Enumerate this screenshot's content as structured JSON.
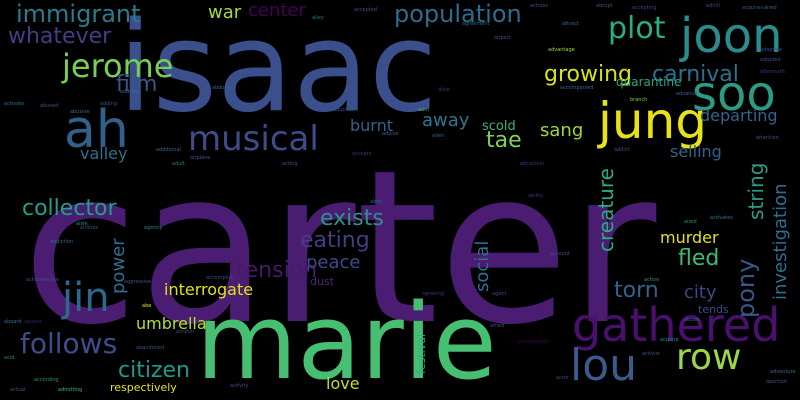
{
  "words": [
    {
      "text": "carter",
      "color": "#4a1d72",
      "rot": false
    },
    {
      "text": "isaac",
      "color": "#3a4f8b",
      "rot": false
    },
    {
      "text": "marie",
      "color": "#46bf72",
      "rot": false
    },
    {
      "text": "joon",
      "color": "#2a8c8c",
      "rot": false
    },
    {
      "text": "soo",
      "color": "#2c9a84",
      "rot": false
    },
    {
      "text": "jung",
      "color": "#e6e216",
      "rot": false
    },
    {
      "text": "ah",
      "color": "#31608d",
      "rot": false
    },
    {
      "text": "gathered",
      "color": "#4b0f6f",
      "rot": false
    },
    {
      "text": "lou",
      "color": "#3a5b8c",
      "rot": false
    },
    {
      "text": "row",
      "color": "#9cd64a",
      "rot": false
    },
    {
      "text": "jin",
      "color": "#2b6a8d",
      "rot": false
    },
    {
      "text": "jerome",
      "color": "#75d054",
      "rot": false
    },
    {
      "text": "musical",
      "color": "#404b8b",
      "rot": false
    },
    {
      "text": "plot",
      "color": "#28ae80",
      "rot": false
    },
    {
      "text": "population",
      "color": "#2f6b8e",
      "rot": false
    },
    {
      "text": "immigrant",
      "color": "#2c7a8e",
      "rot": false
    },
    {
      "text": "whatever",
      "color": "#433e85",
      "rot": false
    },
    {
      "text": "follows",
      "color": "#3d4d8a",
      "rot": false
    },
    {
      "text": "eating",
      "color": "#433d84",
      "rot": false
    },
    {
      "text": "exists",
      "color": "#30918b",
      "rot": false
    },
    {
      "text": "tension",
      "color": "#48186a",
      "rot": false
    },
    {
      "text": "collector",
      "color": "#1fa088",
      "rot": false
    },
    {
      "text": "citizen",
      "color": "#1f9a8a",
      "rot": false
    },
    {
      "text": "growing",
      "color": "#d8e219",
      "rot": false
    },
    {
      "text": "carnival",
      "color": "#2c718e",
      "rot": false
    },
    {
      "text": "film",
      "color": "#39558c",
      "rot": false
    },
    {
      "text": "war",
      "color": "#a2da37",
      "rot": false
    },
    {
      "text": "center",
      "color": "#440154",
      "rot": false
    },
    {
      "text": "tae",
      "color": "#7fd34e",
      "rot": false
    },
    {
      "text": "sang",
      "color": "#9bd93c",
      "rot": false
    },
    {
      "text": "away",
      "color": "#2a778e",
      "rot": false
    },
    {
      "text": "burnt",
      "color": "#33628d",
      "rot": false
    },
    {
      "text": "scold",
      "color": "#39b57a",
      "rot": false
    },
    {
      "text": "departing",
      "color": "#32648e",
      "rot": false
    },
    {
      "text": "investigation",
      "color": "#2e6f8e",
      "rot": false
    },
    {
      "text": "string",
      "color": "#2d9c89",
      "rot": false
    },
    {
      "text": "selling",
      "color": "#34618d",
      "rot": false
    },
    {
      "text": "quarantine",
      "color": "#22a785",
      "rot": false
    },
    {
      "text": "creature",
      "color": "#28ae80",
      "rot": false
    },
    {
      "text": "murder",
      "color": "#dde318",
      "rot": false
    },
    {
      "text": "fled",
      "color": "#3bbb75",
      "rot": false
    },
    {
      "text": "pony",
      "color": "#39558c",
      "rot": false
    },
    {
      "text": "torn",
      "color": "#33628d",
      "rot": false
    },
    {
      "text": "city",
      "color": "#404688",
      "rot": false
    },
    {
      "text": "social",
      "color": "#2e6e8e",
      "rot": false
    },
    {
      "text": "peace",
      "color": "#3f4889",
      "rot": false
    },
    {
      "text": "power",
      "color": "#2e6e8e",
      "rot": false
    },
    {
      "text": "interrogate",
      "color": "#dde318",
      "rot": false
    },
    {
      "text": "umbrella",
      "color": "#b5de2b",
      "rot": false
    },
    {
      "text": "valley",
      "color": "#2c718e",
      "rot": false
    },
    {
      "text": "love",
      "color": "#c2df23",
      "rot": false
    },
    {
      "text": "respectively",
      "color": "#e6e419",
      "rot": false
    },
    {
      "text": "festival",
      "color": "#2db27d",
      "rot": false
    },
    {
      "text": "tends",
      "color": "#3e4a89",
      "rot": false
    },
    {
      "text": "dust",
      "color": "#482878",
      "rot": false
    },
    {
      "text": "acquires",
      "color": "#3b528b",
      "rot": false
    },
    {
      "text": "accomplish",
      "color": "#3e4989",
      "rot": false
    },
    {
      "text": "activity",
      "color": "#3b528b",
      "rot": false
    },
    {
      "text": "according",
      "color": "#21918c",
      "rot": false
    },
    {
      "text": "actual",
      "color": "#3a548c",
      "rot": false
    },
    {
      "text": "admitting",
      "color": "#35b779",
      "rot": false
    },
    {
      "text": "alley",
      "color": "#2c728e",
      "rot": false
    },
    {
      "text": "airport",
      "color": "#3b528b",
      "rot": false
    },
    {
      "text": "advantage",
      "color": "#a5db36",
      "rot": false
    },
    {
      "text": "addiction",
      "color": "#31688e",
      "rot": false
    },
    {
      "text": "accepts",
      "color": "#46307e",
      "rot": false
    },
    {
      "text": "actor",
      "color": "#3e4989",
      "rot": false
    },
    {
      "text": "abortion",
      "color": "#3b528b",
      "rot": false
    },
    {
      "text": "adventure",
      "color": "#31688e",
      "rot": false
    },
    {
      "text": "activist",
      "color": "#3b528b",
      "rot": false
    },
    {
      "text": "branch",
      "color": "#7ad151",
      "rot": false
    },
    {
      "text": "acid",
      "color": "#25858e",
      "rot": false
    },
    {
      "text": "agent",
      "color": "#433e85",
      "rot": false
    },
    {
      "text": "agency",
      "color": "#26828e",
      "rot": false
    },
    {
      "text": "adult",
      "color": "#2a788e",
      "rot": false
    },
    {
      "text": "airplane",
      "color": "#3b528b",
      "rot": false
    },
    {
      "text": "abusive",
      "color": "#2c728e",
      "rot": false
    },
    {
      "text": "attraction",
      "color": "#46327e",
      "rot": false
    },
    {
      "text": "abe",
      "color": "#e5e419",
      "rot": false
    },
    {
      "text": "accidentally",
      "color": "#440154",
      "rot": false
    },
    {
      "text": "account",
      "color": "#3b528b",
      "rot": false
    },
    {
      "text": "abby",
      "color": "#31688e",
      "rot": false
    },
    {
      "text": "aboard",
      "color": "#48186a",
      "rot": false
    },
    {
      "text": "accepted",
      "color": "#3b528b",
      "rot": false
    },
    {
      "text": "afraid",
      "color": "#3b528b",
      "rot": false
    },
    {
      "text": "agreeing",
      "color": "#472d7b",
      "rot": false
    },
    {
      "text": "alive",
      "color": "#46307e",
      "rot": false
    },
    {
      "text": "aired",
      "color": "#21918c",
      "rot": false
    },
    {
      "text": "adopted",
      "color": "#3b528b",
      "rot": false
    },
    {
      "text": "attract",
      "color": "#2c728e",
      "rot": false
    },
    {
      "text": "admit",
      "color": "#414487",
      "rot": false
    },
    {
      "text": "additional",
      "color": "#31688e",
      "rot": false
    },
    {
      "text": "activates",
      "color": "#2a788e",
      "rot": false
    },
    {
      "text": "aggressive",
      "color": "#3b528b",
      "rot": false
    },
    {
      "text": "aftermath",
      "color": "#46327e",
      "rot": false
    },
    {
      "text": "alcohol",
      "color": "#3b528b",
      "rot": false
    },
    {
      "text": "abducted",
      "color": "#3b528b",
      "rot": false
    },
    {
      "text": "active",
      "color": "#21918c",
      "rot": false
    },
    {
      "text": "adoptive",
      "color": "#3b528b",
      "rot": false
    },
    {
      "text": "aunt",
      "color": "#35b779",
      "rot": false
    },
    {
      "text": "abused",
      "color": "#3b528b",
      "rot": false
    },
    {
      "text": "adding",
      "color": "#3b528b",
      "rot": false
    },
    {
      "text": "acting",
      "color": "#3b528b",
      "rot": false
    },
    {
      "text": "advice",
      "color": "#31688e",
      "rot": false
    },
    {
      "text": "addict",
      "color": "#3b528b",
      "rot": false
    },
    {
      "text": "abducts",
      "color": "#31688e",
      "rot": false
    },
    {
      "text": "acknowledge",
      "color": "#3b528b",
      "rot": false
    },
    {
      "text": "accompanied",
      "color": "#31688e",
      "rot": false
    },
    {
      "text": "attention",
      "color": "#3b528b",
      "rot": false
    },
    {
      "text": "airlines",
      "color": "#3b528b",
      "rot": false
    },
    {
      "text": "activate",
      "color": "#2c728e",
      "rot": false
    },
    {
      "text": "advance",
      "color": "#31688e",
      "rot": false
    },
    {
      "text": "aisle",
      "color": "#21918c",
      "rot": false
    },
    {
      "text": "ability",
      "color": "#46307e",
      "rot": false
    },
    {
      "text": "abandoned",
      "color": "#3b528b",
      "rot": false
    },
    {
      "text": "agreement",
      "color": "#31688e",
      "rot": false
    },
    {
      "text": "aboard",
      "color": "#2c728e",
      "rot": false
    },
    {
      "text": "acquire",
      "color": "#21918c",
      "rot": false
    },
    {
      "text": "alien",
      "color": "#31688e",
      "rot": false
    },
    {
      "text": "actress",
      "color": "#3b528b",
      "rot": false
    },
    {
      "text": "abuse",
      "color": "#31688e",
      "rot": false
    },
    {
      "text": "address",
      "color": "#2c728e",
      "rot": false
    },
    {
      "text": "accepting",
      "color": "#414487",
      "rot": false
    },
    {
      "text": "abrupt",
      "color": "#3b528b",
      "rot": false
    },
    {
      "text": "aired",
      "color": "#31688e",
      "rot": false
    }
  ]
}
